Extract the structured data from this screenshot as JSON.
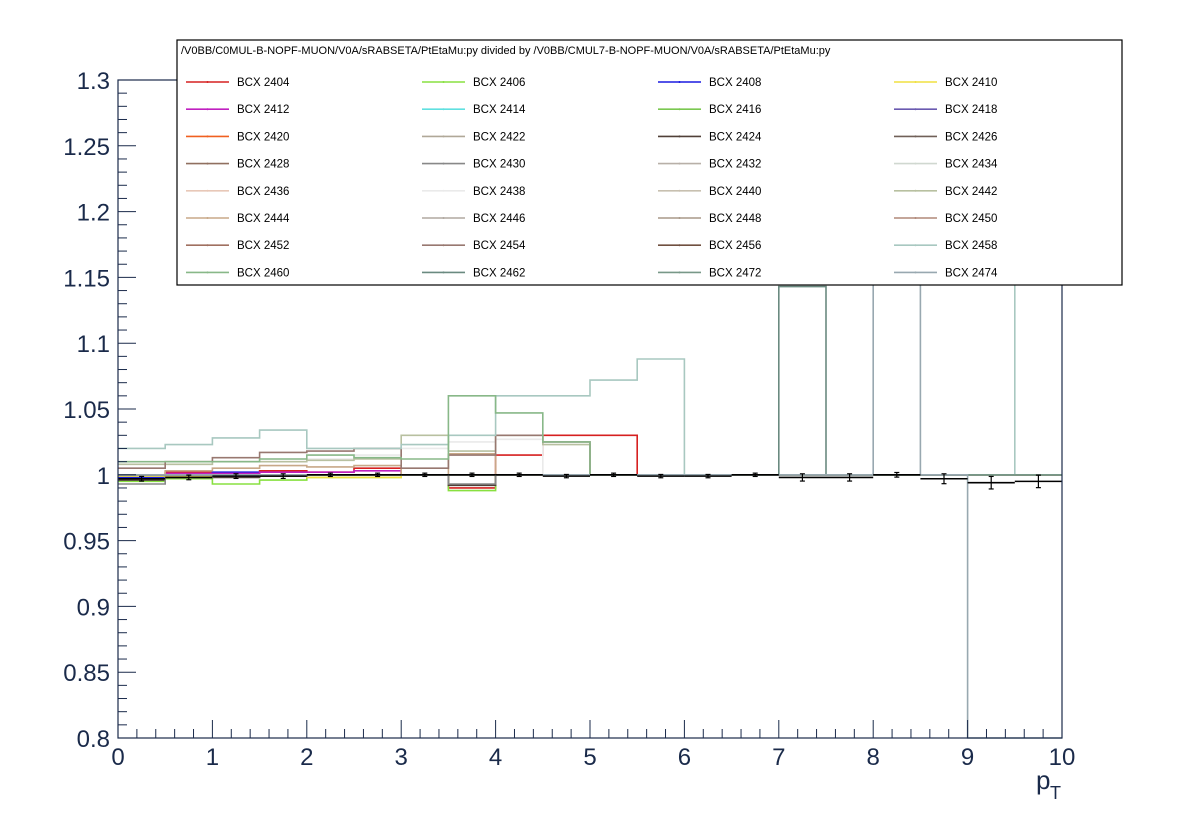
{
  "chart_data": {
    "type": "line",
    "title": "/V0BB/C0MUL-B-NOPF-MUON/V0A/sRABSETA/PtEtaMu:py divided by /V0BB/CMUL7-B-NOPF-MUON/V0A/sRABSETA/PtEtaMu:py",
    "xlabel": "p",
    "xlabel_sub": "T",
    "ylabel": "",
    "xlim": [
      0,
      10
    ],
    "ylim": [
      0.8,
      1.3
    ],
    "x_ticks": [
      "0",
      "1",
      "2",
      "3",
      "4",
      "5",
      "6",
      "7",
      "8",
      "9",
      "10"
    ],
    "y_ticks": [
      "0.8",
      "0.85",
      "0.9",
      "0.95",
      "1",
      "1.05",
      "1.1",
      "1.15",
      "1.2",
      "1.25",
      "1.3"
    ],
    "bin_edges": [
      0,
      0.5,
      1,
      1.5,
      2,
      2.5,
      3,
      3.5,
      4,
      4.5,
      5,
      5.5,
      6,
      6.5,
      7,
      7.5,
      8,
      8.5,
      9,
      9.5,
      10
    ],
    "series": [
      {
        "name": "BCX 2404",
        "color": "#d62020",
        "values": [
          0.997,
          1.002,
          1.0,
          1.003,
          1.002,
          1.005,
          1.0,
          0.99,
          1.015,
          1.03,
          1.03,
          1.0,
          1.0,
          1.0,
          1.0,
          1.0,
          1.0,
          1.0,
          1.0,
          1.0
        ]
      },
      {
        "name": "BCX 2406",
        "color": "#88e040",
        "values": [
          0.995,
          0.997,
          0.993,
          0.996,
          0.998,
          0.998,
          1.0,
          0.988,
          1.0,
          1.0,
          1.0,
          1.0,
          1.0,
          1.0,
          1.0,
          1.0,
          1.0,
          1.0,
          1.0,
          1.0
        ]
      },
      {
        "name": "BCX 2408",
        "color": "#1a1ae0",
        "values": [
          0.998,
          1.0,
          1.002,
          0.999,
          1.0,
          1.0,
          1.0,
          1.0,
          1.0,
          1.0,
          1.0,
          1.0,
          1.0,
          1.0,
          1.0,
          1.0,
          1.0,
          1.0,
          1.0,
          1.0
        ]
      },
      {
        "name": "BCX 2410",
        "color": "#f0e040",
        "values": [
          0.999,
          0.999,
          0.999,
          0.999,
          0.998,
          0.998,
          1.0,
          1.0,
          1.0,
          1.0,
          1.0,
          1.0,
          1.0,
          1.0,
          1.0,
          1.0,
          1.0,
          1.0,
          1.0,
          1.0
        ]
      },
      {
        "name": "BCX 2412",
        "color": "#c020c0",
        "values": [
          1.0,
          1.001,
          1.001,
          1.002,
          1.002,
          1.003,
          1.0,
          1.0,
          1.0,
          1.0,
          1.0,
          1.0,
          1.0,
          1.0,
          1.0,
          1.0,
          1.0,
          1.0,
          1.0,
          1.0
        ]
      },
      {
        "name": "BCX 2414",
        "color": "#60e0e0",
        "values": [
          1.0,
          1.0,
          1.0,
          1.0,
          1.0,
          1.0,
          1.0,
          1.0,
          1.0,
          1.0,
          1.0,
          1.0,
          1.0,
          1.0,
          1.0,
          1.0,
          1.0,
          1.0,
          1.0,
          1.0
        ]
      },
      {
        "name": "BCX 2416",
        "color": "#7ac850",
        "values": [
          1.0,
          1.0,
          1.0,
          1.0,
          1.0,
          1.0,
          1.0,
          1.0,
          1.0,
          1.0,
          1.0,
          1.0,
          1.0,
          1.0,
          1.0,
          1.0,
          1.0,
          1.0,
          1.0,
          1.0
        ]
      },
      {
        "name": "BCX 2418",
        "color": "#6a5ab0",
        "values": [
          1.0,
          1.0,
          1.0,
          1.0,
          1.0,
          1.0,
          1.0,
          1.0,
          1.0,
          1.0,
          1.0,
          1.0,
          1.0,
          1.0,
          1.0,
          1.0,
          1.0,
          1.0,
          1.0,
          1.0
        ]
      },
      {
        "name": "BCX 2420",
        "color": "#f06020",
        "values": [
          1.0,
          1.0,
          1.0,
          1.0,
          1.0,
          1.0,
          1.0,
          1.0,
          1.0,
          1.0,
          1.0,
          1.0,
          1.0,
          1.0,
          1.0,
          1.0,
          1.0,
          1.0,
          1.0,
          1.0
        ]
      },
      {
        "name": "BCX 2422",
        "color": "#b0a898",
        "values": [
          1.0,
          1.0,
          1.0,
          1.0,
          1.0,
          1.0,
          1.0,
          1.0,
          1.0,
          1.0,
          1.0,
          1.0,
          1.0,
          1.0,
          1.0,
          1.0,
          1.0,
          1.0,
          1.0,
          1.0
        ]
      },
      {
        "name": "BCX 2424",
        "color": "#504038",
        "values": [
          0.996,
          0.998,
          0.998,
          0.999,
          1.0,
          1.0,
          1.0,
          0.992,
          1.0,
          1.0,
          1.0,
          1.0,
          1.0,
          1.0,
          1.0,
          1.0,
          1.0,
          1.0,
          1.0,
          1.0
        ]
      },
      {
        "name": "BCX 2426",
        "color": "#706058",
        "values": [
          1.0,
          1.0,
          1.0,
          1.0,
          1.0,
          1.0,
          1.0,
          1.0,
          1.0,
          1.0,
          1.0,
          1.0,
          1.0,
          1.0,
          1.0,
          1.0,
          1.0,
          1.0,
          1.0,
          1.0
        ]
      },
      {
        "name": "BCX 2428",
        "color": "#907060",
        "values": [
          1.0,
          1.0,
          1.0,
          1.0,
          1.0,
          1.0,
          1.0,
          1.0,
          1.0,
          1.0,
          1.0,
          1.0,
          1.0,
          1.0,
          1.0,
          1.0,
          1.0,
          1.0,
          1.0,
          1.0
        ]
      },
      {
        "name": "BCX 2430",
        "color": "#888888",
        "values": [
          0.993,
          0.998,
          0.999,
          0.999,
          1.0,
          1.0,
          1.0,
          0.993,
          1.0,
          1.0,
          1.0,
          1.0,
          1.0,
          1.0,
          1.0,
          1.0,
          1.0,
          1.0,
          1.0,
          1.0
        ]
      },
      {
        "name": "BCX 2432",
        "color": "#b8b0a8",
        "values": [
          1.0,
          1.0,
          1.0,
          1.0,
          1.0,
          1.0,
          1.0,
          1.0,
          1.0,
          1.0,
          1.0,
          1.0,
          1.0,
          1.0,
          1.0,
          1.0,
          1.0,
          1.0,
          1.0,
          1.0
        ]
      },
      {
        "name": "BCX 2434",
        "color": "#d0d8d0",
        "values": [
          1.0,
          1.0,
          1.0,
          1.0,
          1.0,
          1.0,
          1.0,
          1.0,
          1.0,
          1.0,
          1.0,
          1.0,
          1.0,
          1.0,
          1.0,
          1.0,
          1.0,
          1.0,
          1.0,
          1.0
        ]
      },
      {
        "name": "BCX 2436",
        "color": "#e8c8b8",
        "values": [
          1.0,
          1.0,
          1.0,
          1.0,
          1.0,
          1.0,
          1.0,
          1.0,
          1.0,
          1.0,
          1.0,
          1.0,
          1.0,
          1.0,
          1.0,
          1.0,
          1.0,
          1.0,
          1.0,
          1.0
        ]
      },
      {
        "name": "BCX 2438",
        "color": "#eaeaea",
        "values": [
          1.005,
          1.008,
          1.01,
          1.012,
          1.012,
          1.015,
          1.02,
          1.025,
          1.027,
          1.0,
          1.0,
          1.0,
          1.0,
          1.0,
          1.0,
          1.0,
          1.0,
          1.0,
          1.0,
          1.0
        ]
      },
      {
        "name": "BCX 2440",
        "color": "#c8c0b0",
        "values": [
          1.0,
          1.0,
          1.0,
          1.0,
          1.0,
          1.0,
          1.0,
          1.0,
          1.0,
          1.0,
          1.0,
          1.0,
          1.0,
          1.0,
          1.0,
          1.0,
          1.0,
          1.0,
          1.0,
          1.0
        ]
      },
      {
        "name": "BCX 2442",
        "color": "#b8c0a0",
        "values": [
          1.008,
          1.008,
          1.01,
          1.01,
          1.011,
          1.012,
          1.03,
          1.018,
          1.03,
          1.023,
          1.0,
          1.0,
          1.0,
          1.0,
          1.0,
          1.0,
          1.0,
          1.0,
          1.0,
          1.0
        ]
      },
      {
        "name": "BCX 2444",
        "color": "#c8a888",
        "values": [
          1.0,
          1.003,
          1.005,
          1.007,
          1.006,
          1.007,
          1.0,
          1.016,
          1.0,
          1.0,
          1.0,
          1.0,
          1.0,
          1.0,
          1.0,
          1.0,
          1.0,
          1.0,
          1.0,
          1.0
        ]
      },
      {
        "name": "BCX 2446",
        "color": "#b0a8a0",
        "values": [
          1.0,
          1.0,
          1.0,
          1.0,
          1.0,
          1.0,
          1.0,
          1.0,
          1.0,
          1.0,
          1.0,
          1.0,
          1.0,
          1.0,
          1.0,
          1.0,
          1.0,
          1.0,
          1.0,
          1.0
        ]
      },
      {
        "name": "BCX 2448",
        "color": "#a89888",
        "values": [
          1.0,
          1.0,
          1.0,
          1.0,
          1.0,
          1.0,
          1.0,
          1.0,
          1.0,
          1.0,
          1.0,
          1.0,
          1.0,
          1.0,
          1.0,
          1.0,
          1.0,
          1.0,
          1.0,
          1.0
        ]
      },
      {
        "name": "BCX 2450",
        "color": "#b08878",
        "values": [
          1.0,
          1.0,
          1.0,
          1.0,
          1.0,
          1.0,
          1.0,
          1.0,
          1.0,
          1.0,
          1.0,
          1.0,
          1.0,
          1.0,
          1.0,
          1.0,
          1.0,
          1.0,
          1.0,
          1.0
        ]
      },
      {
        "name": "BCX 2452",
        "color": "#a07060",
        "values": [
          1.0,
          1.0,
          1.0,
          1.0,
          1.0,
          1.0,
          1.0,
          1.0,
          1.0,
          1.0,
          1.0,
          1.0,
          1.0,
          1.0,
          1.0,
          1.0,
          1.0,
          1.0,
          1.0,
          1.0
        ]
      },
      {
        "name": "BCX 2454",
        "color": "#987870",
        "values": [
          1.005,
          1.01,
          1.013,
          1.017,
          1.018,
          1.02,
          1.005,
          1.015,
          1.03,
          1.025,
          1.0,
          1.0,
          1.0,
          1.0,
          1.0,
          1.0,
          1.0,
          1.0,
          1.0,
          1.0
        ]
      },
      {
        "name": "BCX 2456",
        "color": "#705040",
        "values": [
          1.0,
          1.0,
          1.0,
          1.0,
          1.0,
          1.0,
          1.0,
          1.0,
          1.0,
          1.0,
          1.0,
          1.0,
          1.0,
          1.0,
          1.0,
          1.0,
          1.0,
          1.0,
          1.0,
          1.0
        ]
      },
      {
        "name": "BCX 2458",
        "color": "#a8c8c0",
        "values": [
          1.02,
          1.023,
          1.028,
          1.034,
          1.02,
          1.02,
          1.023,
          1.03,
          1.06,
          1.06,
          1.072,
          1.088,
          1.0,
          1.0,
          1.0,
          1.0,
          1.0,
          1.0,
          1.0,
          1.3
        ]
      },
      {
        "name": "BCX 2460",
        "color": "#88b888",
        "values": [
          1.01,
          1.01,
          1.01,
          1.012,
          1.015,
          1.013,
          1.012,
          1.06,
          1.047,
          1.025,
          1.0,
          1.0,
          1.0,
          1.0,
          1.0,
          1.0,
          1.0,
          1.0,
          1.0,
          1.0
        ]
      },
      {
        "name": "BCX 2462",
        "color": "#6a8a80",
        "values": [
          1.0,
          1.0,
          1.0,
          1.0,
          1.0,
          1.0,
          1.0,
          1.0,
          1.0,
          1.0,
          1.0,
          1.0,
          1.0,
          1.0,
          1.143,
          1.0,
          1.0,
          1.0,
          1.0,
          1.0
        ]
      },
      {
        "name": "BCX 2472",
        "color": "#789888",
        "values": [
          1.0,
          1.0,
          1.0,
          1.0,
          1.0,
          1.0,
          1.0,
          1.0,
          1.0,
          1.0,
          1.0,
          1.0,
          1.0,
          1.0,
          1.0,
          1.0,
          1.0,
          1.0,
          1.0,
          1.0
        ]
      },
      {
        "name": "BCX 2474",
        "color": "#98a8b0",
        "values": [
          1.0,
          1.0,
          1.0,
          1.0,
          1.0,
          1.0,
          1.0,
          1.0,
          1.0,
          1.0,
          1.0,
          1.0,
          1.0,
          1.0,
          1.0,
          1.0,
          1.3,
          1.0,
          0.8,
          0.8
        ]
      }
    ],
    "reference_series": {
      "name": "ratio",
      "color": "#000000",
      "values": [
        0.997,
        0.998,
        0.999,
        0.999,
        1.0,
        1.0,
        1.0,
        1.0,
        1.0,
        0.999,
        1.0,
        0.999,
        0.999,
        1.0,
        0.998,
        0.998,
        1.0,
        0.997,
        0.994,
        0.995
      ],
      "errors": [
        0.001,
        0.001,
        0.001,
        0.001,
        0.0005,
        0.0005,
        0.0005,
        0.0005,
        0.0005,
        0.0005,
        0.0005,
        0.0005,
        0.0005,
        0.0005,
        0.002,
        0.002,
        0.001,
        0.003,
        0.004,
        0.004
      ]
    },
    "legend_position": "top"
  }
}
